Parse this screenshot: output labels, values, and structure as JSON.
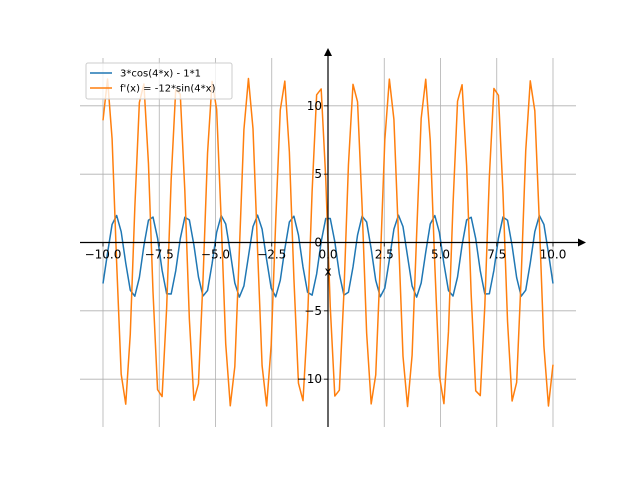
{
  "chart_data": {
    "type": "line",
    "title": "",
    "xlabel": "x",
    "ylabel": "",
    "xlim": [
      -10,
      10
    ],
    "ylim": [
      -13.5,
      13.5
    ],
    "grid": true,
    "legend_position": "top-left",
    "x_ticks": [
      -10,
      -7.5,
      -5,
      -2.5,
      0,
      2.5,
      5,
      7.5,
      10
    ],
    "x_tick_labels": [
      "−10.0",
      "−7.5",
      "−5.0",
      "−2.5",
      "0.0",
      "2.5",
      "5.0",
      "7.5",
      "10.0"
    ],
    "y_ticks": [
      -10,
      -5,
      0,
      5,
      10
    ],
    "y_tick_labels": [
      "−10",
      "−5",
      "0",
      "5",
      "10"
    ],
    "sample_points": 100,
    "series": [
      {
        "name": "3*cos(4*x) - 1*1",
        "color": "#1f77b4",
        "expr": "3*cos(4*x) - 1"
      },
      {
        "name": "f'(x) = -12*sin(4*x)",
        "color": "#ff7f0e",
        "expr": "-12*sin(4*x)"
      }
    ]
  }
}
